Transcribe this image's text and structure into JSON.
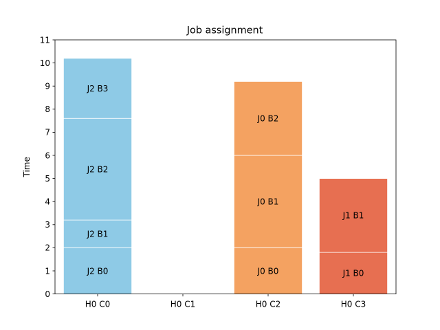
{
  "chart_data": {
    "type": "bar",
    "stacked": true,
    "title": "Job assignment",
    "xlabel": "",
    "ylabel": "Time",
    "ylim": [
      0,
      11
    ],
    "yticks": [
      "0",
      "1",
      "2",
      "3",
      "4",
      "5",
      "6",
      "7",
      "8",
      "9",
      "10",
      "11"
    ],
    "categories": [
      "H0 C0",
      "H0 C1",
      "H0 C2",
      "H0 C3"
    ],
    "grid": false,
    "legend": "none",
    "segments": [
      {
        "category": "H0 C0",
        "label": "J2 B0",
        "start": 0,
        "end": 2.0,
        "color": "#8ecae6"
      },
      {
        "category": "H0 C0",
        "label": "J2 B1",
        "start": 2.0,
        "end": 3.2,
        "color": "#8ecae6"
      },
      {
        "category": "H0 C0",
        "label": "J2 B2",
        "start": 3.2,
        "end": 7.6,
        "color": "#8ecae6"
      },
      {
        "category": "H0 C0",
        "label": "J2 B3",
        "start": 7.6,
        "end": 10.2,
        "color": "#8ecae6"
      },
      {
        "category": "H0 C2",
        "label": "J0 B0",
        "start": 0,
        "end": 2.0,
        "color": "#f4a261"
      },
      {
        "category": "H0 C2",
        "label": "J0 B1",
        "start": 2.0,
        "end": 6.0,
        "color": "#f4a261"
      },
      {
        "category": "H0 C2",
        "label": "J0 B2",
        "start": 6.0,
        "end": 9.2,
        "color": "#f4a261"
      },
      {
        "category": "H0 C3",
        "label": "J1 B0",
        "start": 0,
        "end": 1.8,
        "color": "#e76f51"
      },
      {
        "category": "H0 C3",
        "label": "J1 B1",
        "start": 1.8,
        "end": 5.0,
        "color": "#e76f51"
      }
    ]
  }
}
